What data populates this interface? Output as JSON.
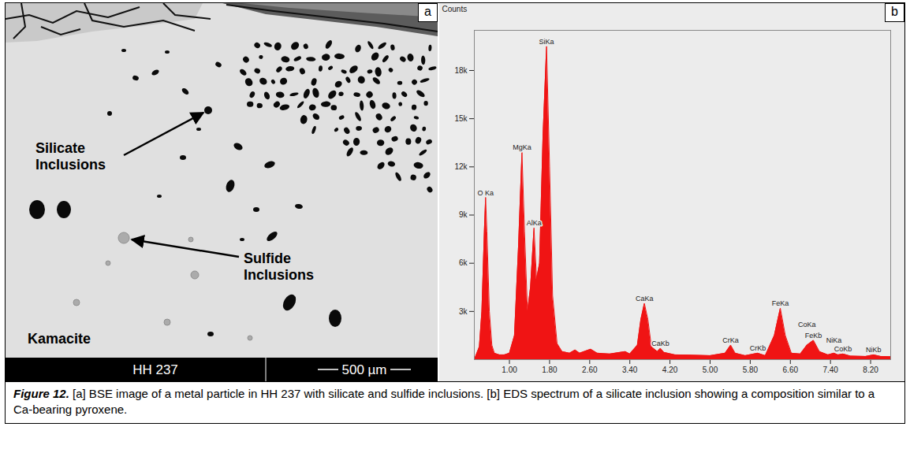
{
  "panel_a": {
    "panel_label": "a",
    "sample": "HH 237",
    "scale_bar": "500 µm",
    "annotations": {
      "silicate": "Silicate Inclusions",
      "sulfide": "Sulfide Inclusions",
      "matrix": "Kamacite"
    }
  },
  "chart_data": {
    "type": "area",
    "panel_label": "b",
    "y_label": "Counts",
    "color": "#f01414",
    "grid": false,
    "x": [
      0.3,
      0.4,
      0.45,
      0.5,
      0.525,
      0.55,
      0.6,
      0.65,
      0.7,
      0.8,
      0.9,
      1.0,
      1.1,
      1.18,
      1.25,
      1.3,
      1.36,
      1.42,
      1.49,
      1.54,
      1.6,
      1.67,
      1.74,
      1.8,
      1.86,
      1.95,
      2.05,
      2.2,
      2.31,
      2.4,
      2.62,
      2.75,
      3.0,
      3.31,
      3.4,
      3.55,
      3.62,
      3.69,
      3.76,
      3.83,
      3.95,
      4.01,
      4.08,
      4.3,
      4.6,
      5.0,
      5.3,
      5.41,
      5.5,
      5.7,
      5.95,
      6.1,
      6.28,
      6.4,
      6.5,
      6.62,
      6.8,
      6.93,
      7.06,
      7.18,
      7.35,
      7.47,
      7.55,
      7.65,
      7.8,
      8.1,
      8.26,
      8.4,
      8.6
    ],
    "values": [
      0,
      800,
      3000,
      8000,
      10100,
      8000,
      3000,
      900,
      400,
      300,
      300,
      400,
      1500,
      7000,
      12900,
      8000,
      3000,
      4500,
      8200,
      5000,
      6000,
      14000,
      19500,
      12000,
      4000,
      1000,
      500,
      400,
      600,
      400,
      650,
      400,
      350,
      500,
      350,
      900,
      2500,
      3500,
      2500,
      800,
      500,
      700,
      450,
      300,
      280,
      250,
      400,
      900,
      400,
      250,
      400,
      250,
      1500,
      3200,
      1500,
      400,
      350,
      900,
      1200,
      500,
      300,
      400,
      300,
      350,
      220,
      200,
      300,
      200,
      180
    ],
    "xlim": [
      0.3,
      8.6
    ],
    "xticks": [
      {
        "value": 1.0,
        "label": "1.00"
      },
      {
        "value": 1.8,
        "label": "1.80"
      },
      {
        "value": 2.6,
        "label": "2.60"
      },
      {
        "value": 3.4,
        "label": "3.40"
      },
      {
        "value": 4.2,
        "label": "4.20"
      },
      {
        "value": 5.0,
        "label": "5.00"
      },
      {
        "value": 5.8,
        "label": "5.80"
      },
      {
        "value": 6.6,
        "label": "6.60"
      },
      {
        "value": 7.4,
        "label": "7.40"
      },
      {
        "value": 8.2,
        "label": "8.20"
      }
    ],
    "ylim": [
      0,
      20500
    ],
    "yticks": [
      {
        "value": 3000,
        "label": "3k"
      },
      {
        "value": 6000,
        "label": "6k"
      },
      {
        "value": 9000,
        "label": "9k"
      },
      {
        "value": 12000,
        "label": "12k"
      },
      {
        "value": 15000,
        "label": "15k"
      },
      {
        "value": 18000,
        "label": "18k"
      }
    ],
    "peaks": [
      {
        "label": "O Ka",
        "energy": 0.525
      },
      {
        "label": "MgKa",
        "energy": 1.25
      },
      {
        "label": "AlKa",
        "energy": 1.49
      },
      {
        "label": "SiKa",
        "energy": 1.74
      },
      {
        "label": "CaKa",
        "energy": 3.69
      },
      {
        "label": "CaKb",
        "energy": 4.01
      },
      {
        "label": "CrKa",
        "energy": 5.41
      },
      {
        "label": "CrKb",
        "energy": 5.95
      },
      {
        "label": "FeKa",
        "energy": 6.4
      },
      {
        "label": "FeKb",
        "energy": 7.06
      },
      {
        "label": "CoKa",
        "energy": 6.93
      },
      {
        "label": "CoKb",
        "energy": 7.65
      },
      {
        "label": "NiKa",
        "energy": 7.47
      },
      {
        "label": "NiKb",
        "energy": 8.26
      }
    ]
  },
  "caption": {
    "label": "Figure 12.",
    "text": "[a] BSE image of a metal particle in HH 237 with silicate and sulfide inclusions. [b] EDS spectrum of a silicate inclusion showing a composition similar to a Ca-bearing pyroxene."
  }
}
